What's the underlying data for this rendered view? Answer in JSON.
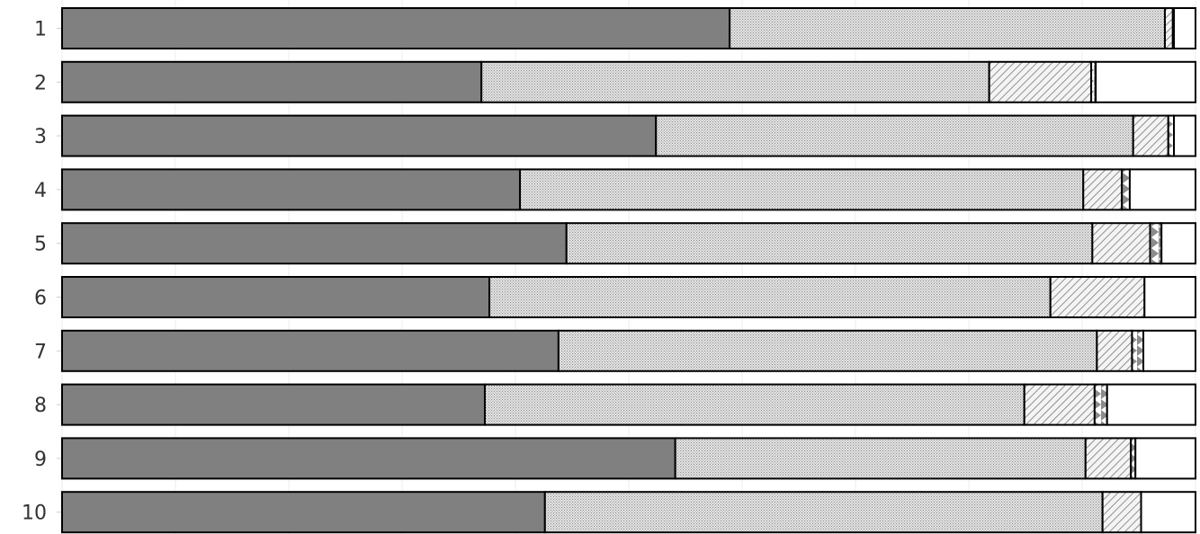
{
  "chart_data": {
    "type": "bar",
    "orientation": "horizontal",
    "stacked": true,
    "normalized": true,
    "categories": [
      "1",
      "2",
      "3",
      "4",
      "5",
      "6",
      "7",
      "8",
      "9",
      "10"
    ],
    "series": [
      {
        "pattern": "solid",
        "color": "#808080",
        "values": [
          58.9,
          37.0,
          52.4,
          40.4,
          44.5,
          37.7,
          43.8,
          37.3,
          54.1,
          42.6
        ]
      },
      {
        "pattern": "crosshatch",
        "color": "#c8c8c8",
        "values": [
          38.4,
          44.8,
          42.1,
          49.7,
          46.4,
          49.5,
          47.5,
          47.6,
          36.2,
          49.2
        ]
      },
      {
        "pattern": "diagonal",
        "color": "#d0d0d0",
        "values": [
          0.7,
          9.0,
          3.1,
          3.4,
          5.1,
          8.3,
          3.1,
          6.2,
          4.0,
          3.4
        ]
      },
      {
        "pattern": "triangles",
        "color": "#9a9a9a",
        "values": [
          0.1,
          0.4,
          0.5,
          0.7,
          1.0,
          0.0,
          1.0,
          1.1,
          0.4,
          0.0
        ]
      },
      {
        "pattern": "blank",
        "color": "#ffffff",
        "values": [
          1.9,
          8.8,
          1.9,
          5.8,
          3.0,
          4.5,
          4.6,
          7.8,
          5.3,
          4.8
        ]
      }
    ],
    "xlim": [
      0,
      100
    ],
    "grid": true,
    "legend": "none"
  }
}
